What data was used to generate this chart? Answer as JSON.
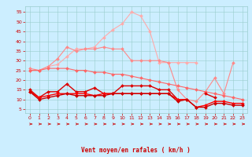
{
  "x": [
    0,
    1,
    2,
    3,
    4,
    5,
    6,
    7,
    8,
    9,
    10,
    11,
    12,
    13,
    14,
    15,
    16,
    17,
    18,
    19,
    20,
    21,
    22,
    23
  ],
  "series": [
    {
      "color": "#ffaaaa",
      "linewidth": 0.8,
      "markersize": 2.0,
      "y": [
        25,
        25,
        27,
        28,
        32,
        36,
        36,
        37,
        42,
        46,
        49,
        55,
        53,
        45,
        29,
        29,
        29,
        29,
        29,
        null,
        null,
        null,
        null,
        null
      ]
    },
    {
      "color": "#ff8888",
      "linewidth": 0.8,
      "markersize": 2.0,
      "y": [
        26,
        25,
        27,
        31,
        37,
        35,
        36,
        36,
        37,
        36,
        36,
        30,
        30,
        30,
        30,
        29,
        15,
        10,
        9,
        14,
        21,
        13,
        29,
        null
      ]
    },
    {
      "color": "#ff6666",
      "linewidth": 0.8,
      "markersize": 2.0,
      "y": [
        25,
        25,
        26,
        26,
        26,
        25,
        25,
        24,
        24,
        23,
        23,
        22,
        21,
        20,
        19,
        18,
        17,
        16,
        15,
        14,
        13,
        12,
        11,
        10
      ]
    },
    {
      "color": "#dd0000",
      "linewidth": 1.0,
      "markersize": 2.0,
      "y": [
        15,
        11,
        14,
        14,
        18,
        14,
        14,
        16,
        13,
        13,
        17,
        17,
        17,
        17,
        15,
        15,
        10,
        10,
        null,
        13,
        11,
        null,
        null,
        null
      ]
    },
    {
      "color": "#ff0000",
      "linewidth": 1.0,
      "markersize": 2.0,
      "y": [
        14,
        11,
        12,
        13,
        13,
        13,
        13,
        12,
        13,
        13,
        13,
        13,
        13,
        13,
        13,
        13,
        10,
        10,
        6,
        7,
        9,
        9,
        8,
        8
      ]
    },
    {
      "color": "#cc0000",
      "linewidth": 1.0,
      "markersize": 2.0,
      "y": [
        14,
        10,
        11,
        12,
        13,
        12,
        12,
        12,
        12,
        13,
        13,
        13,
        13,
        13,
        13,
        13,
        9,
        10,
        6,
        6,
        8,
        8,
        7,
        7
      ]
    }
  ],
  "xlabel": "Vent moyen/en rafales ( km/h )",
  "xlim": [
    -0.5,
    23.5
  ],
  "ylim": [
    3,
    58
  ],
  "yticks": [
    5,
    10,
    15,
    20,
    25,
    30,
    35,
    40,
    45,
    50,
    55
  ],
  "xticks": [
    0,
    1,
    2,
    3,
    4,
    5,
    6,
    7,
    8,
    9,
    10,
    11,
    12,
    13,
    14,
    15,
    16,
    17,
    18,
    19,
    20,
    21,
    22,
    23
  ],
  "bg_color": "#cceeff",
  "grid_color": "#99cccc",
  "text_color": "#cc0000",
  "arrow_color": "#cc0000"
}
